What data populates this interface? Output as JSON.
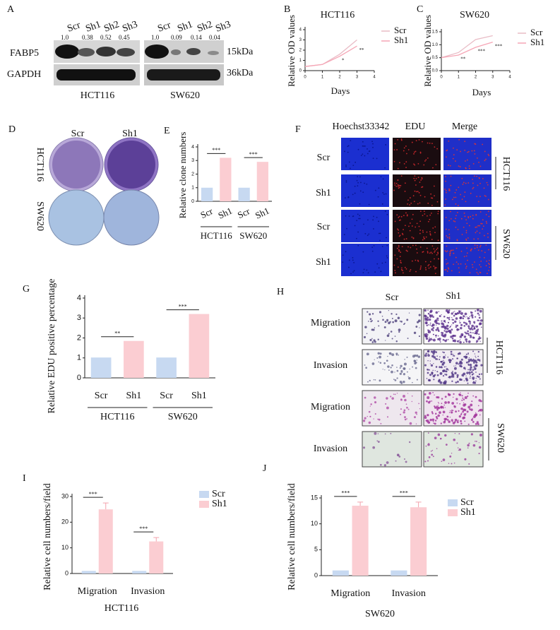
{
  "panels": [
    "A",
    "B",
    "C",
    "D",
    "E",
    "F",
    "G",
    "H",
    "I",
    "J"
  ],
  "blot": {
    "lanes_left": [
      "Scr",
      "Sh1",
      "Sh2",
      "Sh3"
    ],
    "ratios_left": [
      "1.0",
      "0.38",
      "0.52",
      "0.45"
    ],
    "lanes_right": [
      "Scr",
      "Sh1",
      "Sh2",
      "Sh3"
    ],
    "ratios_right": [
      "1.0",
      "0.09",
      "0.14",
      "0.04"
    ],
    "proteins": [
      "FABP5",
      "GAPDH"
    ],
    "sizes": [
      "15kDa",
      "36kDa"
    ],
    "cells": [
      "HCT116",
      "SW620"
    ]
  },
  "colony": {
    "columns": [
      "Scr",
      "Sh1"
    ],
    "rows": [
      "HCT116",
      "SW620"
    ]
  },
  "edu": {
    "columns": [
      "Hoechst33342",
      "EDU",
      "Merge"
    ],
    "rows": [
      "Scr",
      "Sh1",
      "Scr",
      "Sh1"
    ],
    "groups": [
      "HCT116",
      "SW620"
    ]
  },
  "transwell": {
    "columns": [
      "Scr",
      "Sh1"
    ],
    "rows": [
      "Migration",
      "Invasion",
      "Migration",
      "Invasion"
    ],
    "groups": [
      "HCT116",
      "SW620"
    ]
  },
  "chart_data": [
    {
      "type": "line",
      "title": "HCT116",
      "x_label": "Days",
      "y_label": "Relative OD values",
      "x": [
        0,
        1,
        2,
        3
      ],
      "xlim": [
        0,
        4
      ],
      "xticks": [
        0,
        1,
        2,
        3,
        4
      ],
      "ylim": [
        0,
        4
      ],
      "yticks": [
        0,
        1,
        2,
        3,
        4
      ],
      "series": [
        {
          "name": "Scr",
          "color": "#e9bcc6",
          "values": [
            0.4,
            0.6,
            1.6,
            3.0
          ]
        },
        {
          "name": "Sh1",
          "color": "#f6a5b5",
          "values": [
            0.4,
            0.6,
            1.4,
            2.4
          ]
        }
      ],
      "annotations": [
        "*",
        "**"
      ]
    },
    {
      "type": "line",
      "title": "SW620",
      "x_label": "Days",
      "y_label": "Relative OD values",
      "x": [
        0,
        1,
        2,
        3
      ],
      "xlim": [
        0,
        4
      ],
      "xticks": [
        0,
        1,
        2,
        3,
        4
      ],
      "ylim": [
        0,
        1.5
      ],
      "yticks": [
        {
          "value": 0,
          "label": "0.0"
        },
        0.5,
        {
          "value": 1,
          "label": "1.0"
        },
        1.5
      ],
      "series": [
        {
          "name": "Scr",
          "color": "#e9bcc6",
          "values": [
            0.5,
            0.7,
            1.2,
            1.35
          ]
        },
        {
          "name": "Sh1",
          "color": "#f6a5b5",
          "values": [
            0.5,
            0.6,
            0.9,
            1.1
          ]
        }
      ],
      "annotations": [
        "**",
        "***",
        "***"
      ]
    },
    {
      "type": "bar",
      "y_label": "Relative clone numbers",
      "categories": [
        "Scr",
        "Sh1",
        "Scr",
        "Sh1"
      ],
      "groups": [
        "HCT116",
        "SW620"
      ],
      "values": [
        1,
        3.2,
        1,
        2.9
      ],
      "colors": [
        "#c7d9f1",
        "#fbcdd2",
        "#c7d9f1",
        "#fbcdd2"
      ],
      "ylim": [
        0,
        4
      ],
      "yticks": [
        0,
        1,
        2,
        3,
        4
      ],
      "annotations": [
        "***",
        "***"
      ]
    },
    {
      "type": "bar",
      "y_label": "Relative EDU positive percentage",
      "categories": [
        "Scr",
        "Sh1",
        "Scr",
        "Sh1"
      ],
      "groups": [
        "HCT116",
        "SW620"
      ],
      "values": [
        1.02,
        1.85,
        1.02,
        3.2
      ],
      "colors": [
        "#c7d9f1",
        "#fbcdd2",
        "#c7d9f1",
        "#fbcdd2"
      ],
      "ylim": [
        0,
        4
      ],
      "yticks": [
        0,
        1,
        2,
        3,
        4
      ],
      "annotations": [
        "**",
        "***"
      ]
    },
    {
      "type": "groupedbar",
      "y_label": "Relative cell numbers/field",
      "x_label": "HCT116",
      "categories": [
        "Migration",
        "Invasion"
      ],
      "ylim": [
        0,
        30
      ],
      "yticks": [
        0,
        10,
        20,
        30
      ],
      "series": [
        {
          "name": "Scr",
          "color": "#c7d9f1",
          "values": [
            1,
            1
          ]
        },
        {
          "name": "Sh1",
          "color": "#fbcdd2",
          "values": [
            25,
            12.5
          ],
          "errors": [
            2.5,
            1.5
          ]
        }
      ],
      "annotations": [
        "***",
        "***"
      ]
    },
    {
      "type": "groupedbar",
      "y_label": "Relative cell numbers/field",
      "x_label": "SW620",
      "categories": [
        "Migration",
        "Invasion"
      ],
      "ylim": [
        0,
        15
      ],
      "yticks": [
        0,
        5,
        10,
        15
      ],
      "series": [
        {
          "name": "Scr",
          "color": "#c7d9f1",
          "values": [
            1,
            1
          ]
        },
        {
          "name": "Sh1",
          "color": "#fbcdd2",
          "values": [
            13.5,
            13.2
          ],
          "errors": [
            0.7,
            1.0
          ]
        }
      ],
      "annotations": [
        "***",
        "***"
      ]
    }
  ]
}
